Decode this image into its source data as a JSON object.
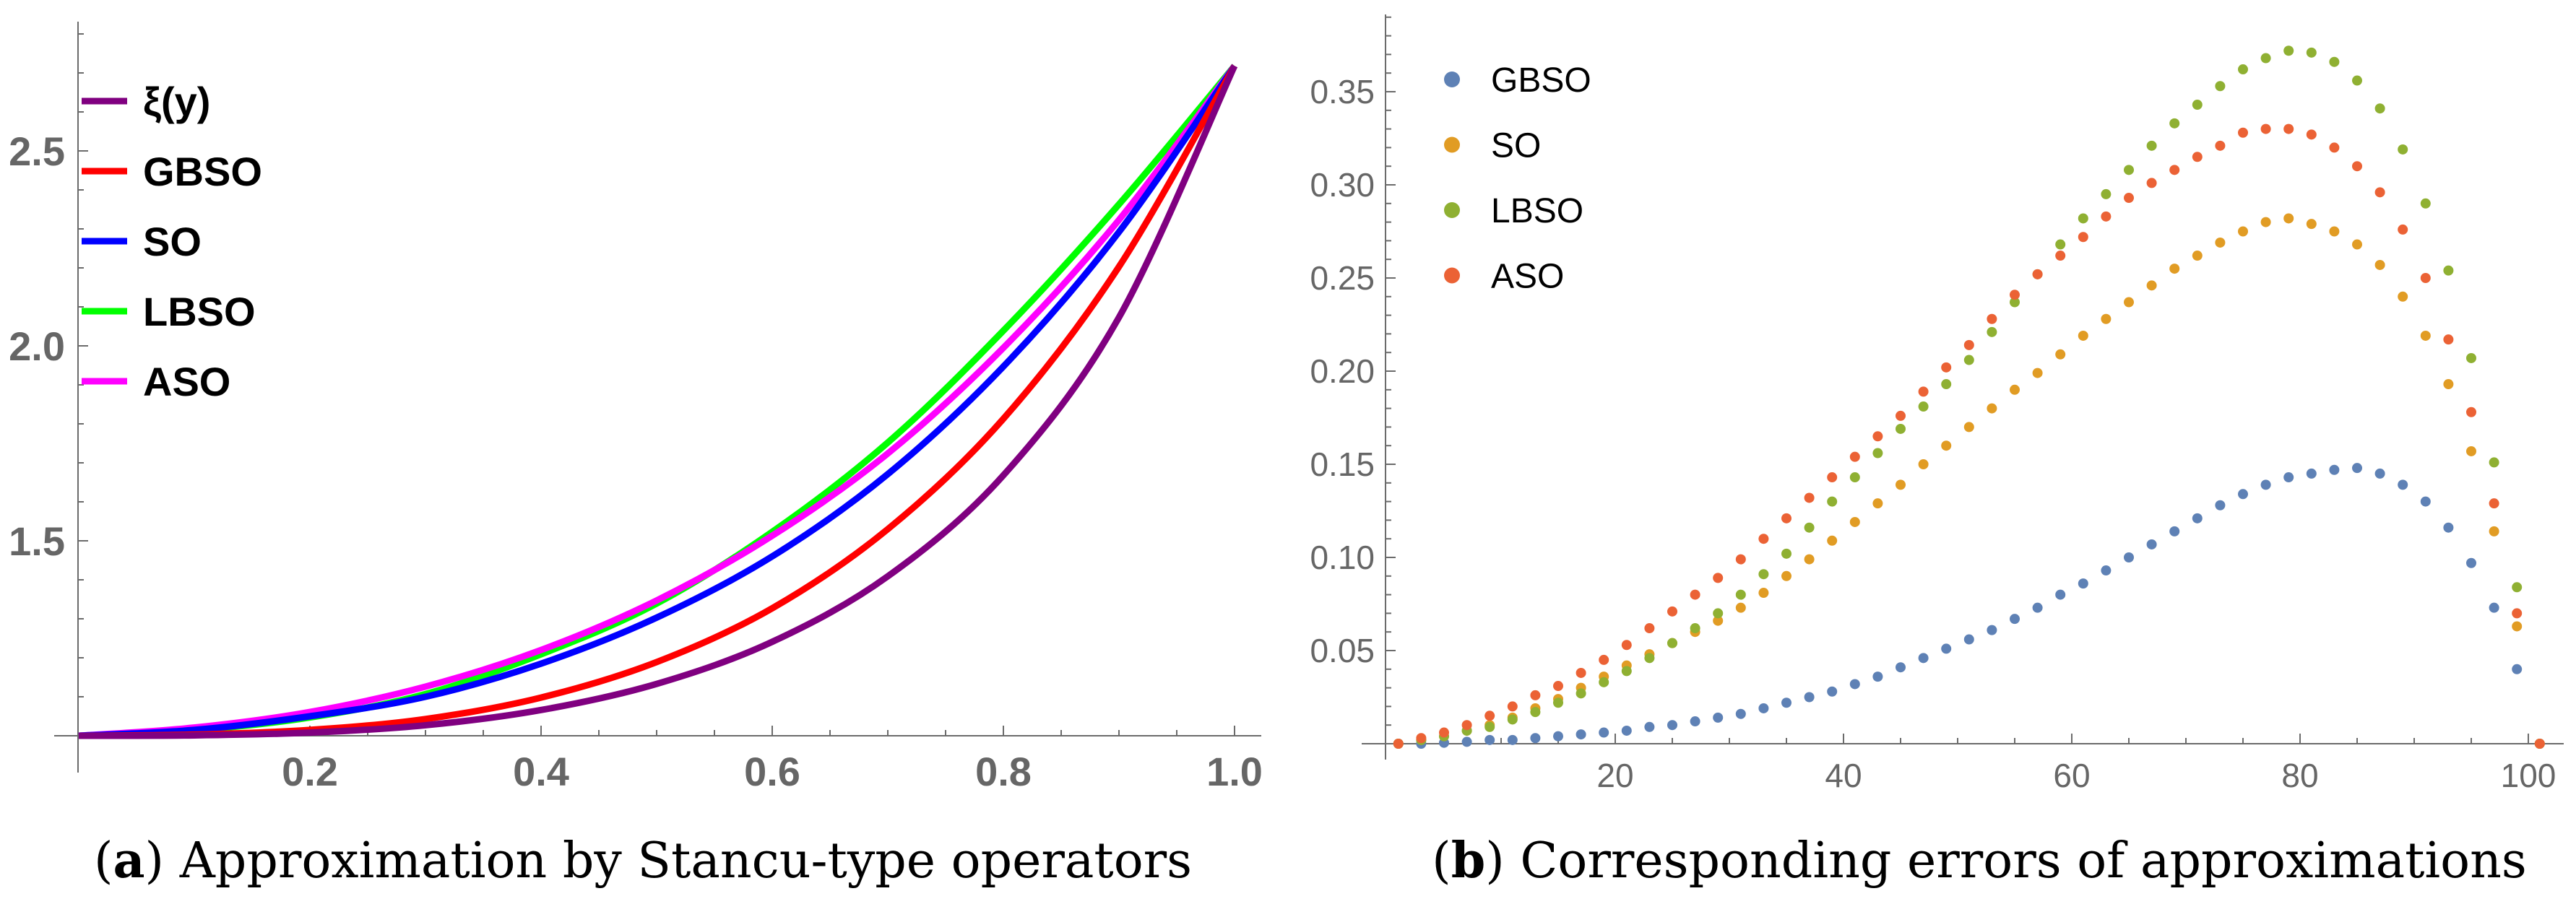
{
  "chart_data": [
    {
      "type": "line",
      "caption_label": "a",
      "caption": "Approximation by Stancu-type operators",
      "xlabel": "",
      "ylabel": "",
      "xlim": [
        0,
        1.0
      ],
      "ylim": [
        1.0,
        2.8
      ],
      "x_ticks": [
        "0.2",
        "0.4",
        "0.6",
        "0.8",
        "1.0"
      ],
      "y_ticks": [
        "1.5",
        "2.0",
        "2.5"
      ],
      "legend_position": "top-left",
      "x": [
        0,
        0.1,
        0.2,
        0.3,
        0.4,
        0.5,
        0.6,
        0.7,
        0.8,
        0.9,
        1.0
      ],
      "series": [
        {
          "name": "ξ(y)",
          "color": "#800080",
          "values": [
            1,
            1.001,
            1.008,
            1.027,
            1.066,
            1.133,
            1.241,
            1.409,
            1.668,
            2.073,
            2.718
          ]
        },
        {
          "name": "GBSO",
          "color": "#FF0000",
          "values": [
            1,
            1.003,
            1.015,
            1.043,
            1.098,
            1.189,
            1.327,
            1.53,
            1.813,
            2.203,
            2.718
          ]
        },
        {
          "name": "SO",
          "color": "#0000FF",
          "values": [
            1,
            1.015,
            1.05,
            1.1,
            1.185,
            1.303,
            1.46,
            1.671,
            1.947,
            2.292,
            2.718
          ]
        },
        {
          "name": "LBSO",
          "color": "#00FF00",
          "values": [
            1,
            1.014,
            1.047,
            1.107,
            1.209,
            1.339,
            1.523,
            1.752,
            2.039,
            2.363,
            2.718
          ]
        },
        {
          "name": "ASO",
          "color": "#FF00FF",
          "values": [
            1,
            1.021,
            1.061,
            1.126,
            1.22,
            1.347,
            1.513,
            1.724,
            1.995,
            2.323,
            2.718
          ]
        }
      ]
    },
    {
      "type": "scatter",
      "caption_label": "b",
      "caption": "Corresponding errors of approximations",
      "xlabel": "",
      "ylabel": "",
      "xlim": [
        0,
        103
      ],
      "ylim": [
        0,
        0.39
      ],
      "x_ticks": [
        "20",
        "40",
        "60",
        "80",
        "100"
      ],
      "y_ticks": [
        "0.05",
        "0.10",
        "0.15",
        "0.20",
        "0.25",
        "0.30",
        "0.35"
      ],
      "legend_position": "top-left",
      "x": [
        1,
        3,
        5,
        7,
        9,
        11,
        13,
        15,
        17,
        19,
        21,
        23,
        25,
        27,
        29,
        31,
        33,
        35,
        37,
        39,
        41,
        43,
        45,
        47,
        49,
        51,
        53,
        55,
        57,
        59,
        61,
        63,
        65,
        67,
        69,
        71,
        73,
        75,
        77,
        79,
        81,
        83,
        85,
        87,
        89,
        91,
        93,
        95,
        97,
        99,
        101
      ],
      "series": [
        {
          "name": "GBSO",
          "color": "#5E81B5",
          "values": [
            0,
            0,
            0.0005,
            0.001,
            0.002,
            0.002,
            0.003,
            0.004,
            0.005,
            0.006,
            0.007,
            0.009,
            0.01,
            0.012,
            0.014,
            0.016,
            0.019,
            0.022,
            0.025,
            0.028,
            0.032,
            0.036,
            0.041,
            0.046,
            0.051,
            0.056,
            0.061,
            0.067,
            0.073,
            0.08,
            0.086,
            0.093,
            0.1,
            0.107,
            0.114,
            0.121,
            0.128,
            0.134,
            0.139,
            0.143,
            0.145,
            0.147,
            0.148,
            0.145,
            0.139,
            0.13,
            0.116,
            0.097,
            0.073,
            0.04,
            0
          ]
        },
        {
          "name": "SO",
          "color": "#E19C24",
          "values": [
            0,
            0.002,
            0.004,
            0.007,
            0.01,
            0.014,
            0.019,
            0.024,
            0.03,
            0.036,
            0.042,
            0.048,
            0.054,
            0.06,
            0.066,
            0.073,
            0.081,
            0.09,
            0.099,
            0.109,
            0.119,
            0.129,
            0.139,
            0.15,
            0.16,
            0.17,
            0.18,
            0.19,
            0.199,
            0.209,
            0.219,
            0.228,
            0.237,
            0.246,
            0.255,
            0.262,
            0.269,
            0.275,
            0.28,
            0.282,
            0.279,
            0.275,
            0.268,
            0.257,
            0.24,
            0.219,
            0.193,
            0.157,
            0.114,
            0.063,
            0
          ]
        },
        {
          "name": "LBSO",
          "color": "#8FB032",
          "values": [
            0,
            0.002,
            0.004,
            0.007,
            0.009,
            0.013,
            0.017,
            0.022,
            0.027,
            0.033,
            0.039,
            0.046,
            0.054,
            0.062,
            0.07,
            0.08,
            0.091,
            0.102,
            0.116,
            0.13,
            0.143,
            0.156,
            0.169,
            0.181,
            0.193,
            0.206,
            0.221,
            0.237,
            0.252,
            0.268,
            0.282,
            0.295,
            0.308,
            0.321,
            0.333,
            0.343,
            0.353,
            0.362,
            0.368,
            0.372,
            0.371,
            0.366,
            0.356,
            0.341,
            0.319,
            0.29,
            0.254,
            0.207,
            0.151,
            0.084,
            0
          ]
        },
        {
          "name": "ASO",
          "color": "#EB6235",
          "values": [
            0,
            0.003,
            0.006,
            0.01,
            0.015,
            0.02,
            0.026,
            0.031,
            0.038,
            0.045,
            0.053,
            0.062,
            0.071,
            0.08,
            0.089,
            0.099,
            0.11,
            0.121,
            0.132,
            0.143,
            0.154,
            0.165,
            0.176,
            0.189,
            0.202,
            0.214,
            0.228,
            0.241,
            0.252,
            0.262,
            0.272,
            0.283,
            0.293,
            0.301,
            0.308,
            0.315,
            0.321,
            0.328,
            0.33,
            0.33,
            0.327,
            0.32,
            0.31,
            0.296,
            0.276,
            0.25,
            0.217,
            0.178,
            0.129,
            0.07,
            0
          ]
        }
      ]
    }
  ]
}
